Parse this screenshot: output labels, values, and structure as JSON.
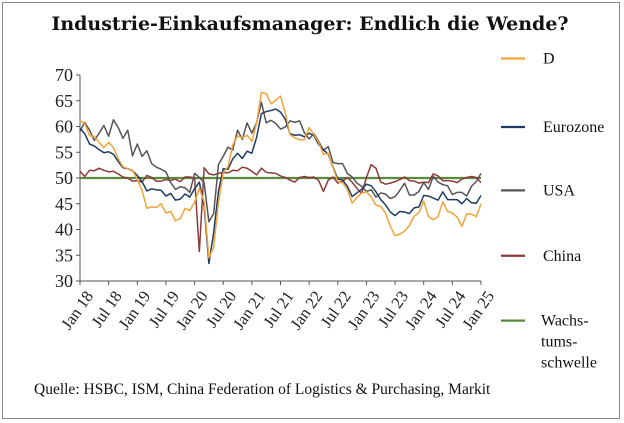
{
  "chart_data": {
    "type": "line",
    "title": "Industrie-Einkaufsmanager: Endlich die Wende?",
    "source": "Quelle: HSBC, ISM, China Federation of Logistics & Purchasing, Markit",
    "xlabel": "",
    "ylabel": "",
    "ylim": [
      30,
      70
    ],
    "yticks": [
      "30",
      "35",
      "40",
      "45",
      "50",
      "55",
      "60",
      "65",
      "70"
    ],
    "x_start": "2018-01",
    "x_end": "2025-01",
    "xticks": [
      "Jan 18",
      "Jul 18",
      "Jan 19",
      "Jul 19",
      "Jan 20",
      "Jul 20",
      "Jan 21",
      "Jul 21",
      "Jan 22",
      "Jul 22",
      "Jan 23",
      "Jul 23",
      "Jan 24",
      "Jul 24",
      "Jan 25"
    ],
    "grid": false,
    "legend_position": "right",
    "series": [
      {
        "name": "D",
        "color": "#f2a33a",
        "values": [
          61.1,
          60.6,
          58.2,
          58.1,
          56.9,
          55.9,
          56.9,
          55.9,
          53.7,
          52.2,
          51.8,
          51.5,
          49.7,
          47.6,
          44.1,
          44.4,
          44.3,
          45.0,
          43.2,
          43.5,
          41.7,
          42.1,
          44.1,
          43.7,
          45.3,
          48.0,
          45.4,
          34.5,
          36.6,
          45.2,
          51.0,
          52.2,
          56.4,
          58.2,
          57.8,
          58.3,
          57.1,
          60.7,
          66.6,
          66.4,
          64.4,
          65.1,
          65.9,
          62.6,
          58.4,
          57.8,
          57.4,
          57.4,
          59.8,
          58.4,
          56.9,
          54.6,
          54.8,
          52.0,
          49.3,
          49.1,
          47.8,
          45.1,
          46.2,
          47.1,
          47.3,
          46.3,
          44.7,
          44.5,
          43.2,
          40.6,
          38.8,
          39.1,
          39.7,
          40.8,
          42.6,
          43.3,
          45.5,
          42.5,
          41.9,
          42.5,
          45.4,
          43.5,
          43.2,
          42.4,
          40.6,
          43.0,
          43.0,
          42.5,
          45.0
        ],
        "label_y": 73.2
      },
      {
        "name": "Eurozone",
        "color": "#1f3b63",
        "values": [
          59.6,
          58.6,
          56.6,
          56.2,
          55.5,
          54.9,
          55.1,
          54.6,
          53.2,
          52.0,
          51.8,
          51.4,
          50.5,
          49.3,
          47.5,
          47.9,
          47.7,
          47.6,
          46.5,
          47.0,
          45.7,
          45.9,
          46.9,
          46.3,
          47.9,
          49.2,
          44.5,
          33.4,
          39.4,
          47.4,
          51.8,
          51.7,
          53.7,
          54.8,
          53.8,
          55.2,
          54.8,
          57.9,
          62.5,
          62.9,
          63.1,
          63.4,
          62.8,
          61.4,
          58.6,
          58.3,
          58.4,
          58.0,
          58.7,
          58.2,
          56.5,
          55.5,
          54.6,
          52.1,
          49.8,
          49.6,
          48.4,
          46.4,
          47.1,
          47.8,
          48.8,
          48.5,
          47.3,
          45.8,
          44.8,
          43.4,
          42.7,
          43.5,
          43.4,
          43.1,
          44.2,
          44.4,
          46.6,
          46.5,
          46.1,
          45.7,
          47.3,
          45.8,
          45.8,
          45.8,
          45.0,
          46.0,
          45.2,
          45.1,
          46.6
        ],
        "label_y": 59.9
      },
      {
        "name": "USA",
        "color": "#555555",
        "values": [
          59.1,
          60.8,
          59.3,
          57.3,
          58.7,
          60.2,
          58.1,
          61.3,
          59.8,
          57.7,
          59.3,
          54.3,
          56.6,
          54.2,
          55.3,
          52.8,
          52.1,
          51.7,
          51.2,
          49.1,
          47.8,
          48.3,
          48.1,
          47.2,
          50.9,
          50.1,
          49.1,
          41.5,
          43.1,
          52.6,
          54.2,
          56.0,
          55.4,
          59.3,
          57.5,
          60.7,
          58.7,
          60.8,
          64.7,
          60.7,
          61.2,
          60.6,
          59.5,
          59.9,
          61.1,
          60.8,
          61.1,
          58.8,
          57.6,
          58.6,
          57.1,
          55.4,
          56.1,
          53.0,
          52.8,
          52.8,
          50.9,
          50.2,
          49.0,
          48.4,
          47.4,
          47.7,
          46.3,
          47.1,
          46.9,
          46.0,
          46.4,
          47.6,
          49.0,
          46.7,
          46.7,
          47.4,
          49.1,
          47.8,
          50.3,
          49.2,
          48.7,
          48.5,
          46.8,
          47.2,
          47.2,
          46.5,
          48.4,
          49.3,
          50.9
        ],
        "label_y": 47.6
      },
      {
        "name": "China",
        "color": "#8b3a3a",
        "values": [
          51.3,
          50.3,
          51.5,
          51.4,
          51.9,
          51.5,
          51.2,
          51.3,
          50.8,
          50.2,
          50.0,
          49.4,
          49.5,
          49.2,
          50.5,
          50.1,
          49.4,
          49.4,
          49.7,
          49.5,
          49.8,
          49.3,
          50.2,
          50.2,
          50.0,
          35.7,
          52.0,
          50.8,
          50.6,
          50.9,
          51.1,
          51.0,
          51.5,
          51.4,
          52.1,
          51.9,
          51.3,
          50.6,
          51.9,
          51.1,
          51.0,
          50.9,
          50.4,
          50.1,
          49.6,
          49.2,
          50.1,
          50.3,
          50.1,
          50.2,
          49.5,
          47.4,
          49.6,
          50.2,
          49.0,
          49.4,
          50.1,
          49.2,
          48.0,
          47.0,
          50.1,
          52.6,
          51.9,
          49.2,
          48.8,
          49.0,
          49.3,
          49.7,
          50.2,
          49.5,
          49.4,
          49.0,
          49.2,
          49.1,
          50.8,
          50.4,
          49.5,
          49.5,
          49.4,
          49.1,
          49.8,
          50.1,
          50.3,
          50.1,
          49.1
        ],
        "label_y": 34.9
      },
      {
        "name": "Wachs-\ntums-\nschwelle",
        "name_lines": [
          "Wachs-",
          "tums-",
          "schwelle"
        ],
        "color": "#5a8a3c",
        "values": [
          50,
          50,
          50,
          50,
          50,
          50,
          50,
          50,
          50,
          50,
          50,
          50,
          50,
          50,
          50,
          50,
          50,
          50,
          50,
          50,
          50,
          50,
          50,
          50,
          50,
          50,
          50,
          50,
          50,
          50,
          50,
          50,
          50,
          50,
          50,
          50,
          50,
          50,
          50,
          50,
          50,
          50,
          50,
          50,
          50,
          50,
          50,
          50,
          50,
          50,
          50,
          50,
          50,
          50,
          50,
          50,
          50,
          50,
          50,
          50,
          50,
          50,
          50,
          50,
          50,
          50,
          50,
          50,
          50,
          50,
          50,
          50,
          50,
          50,
          50,
          50,
          50,
          50,
          50,
          50,
          50,
          50,
          50,
          50,
          50
        ],
        "label_y": 22.3
      }
    ]
  }
}
